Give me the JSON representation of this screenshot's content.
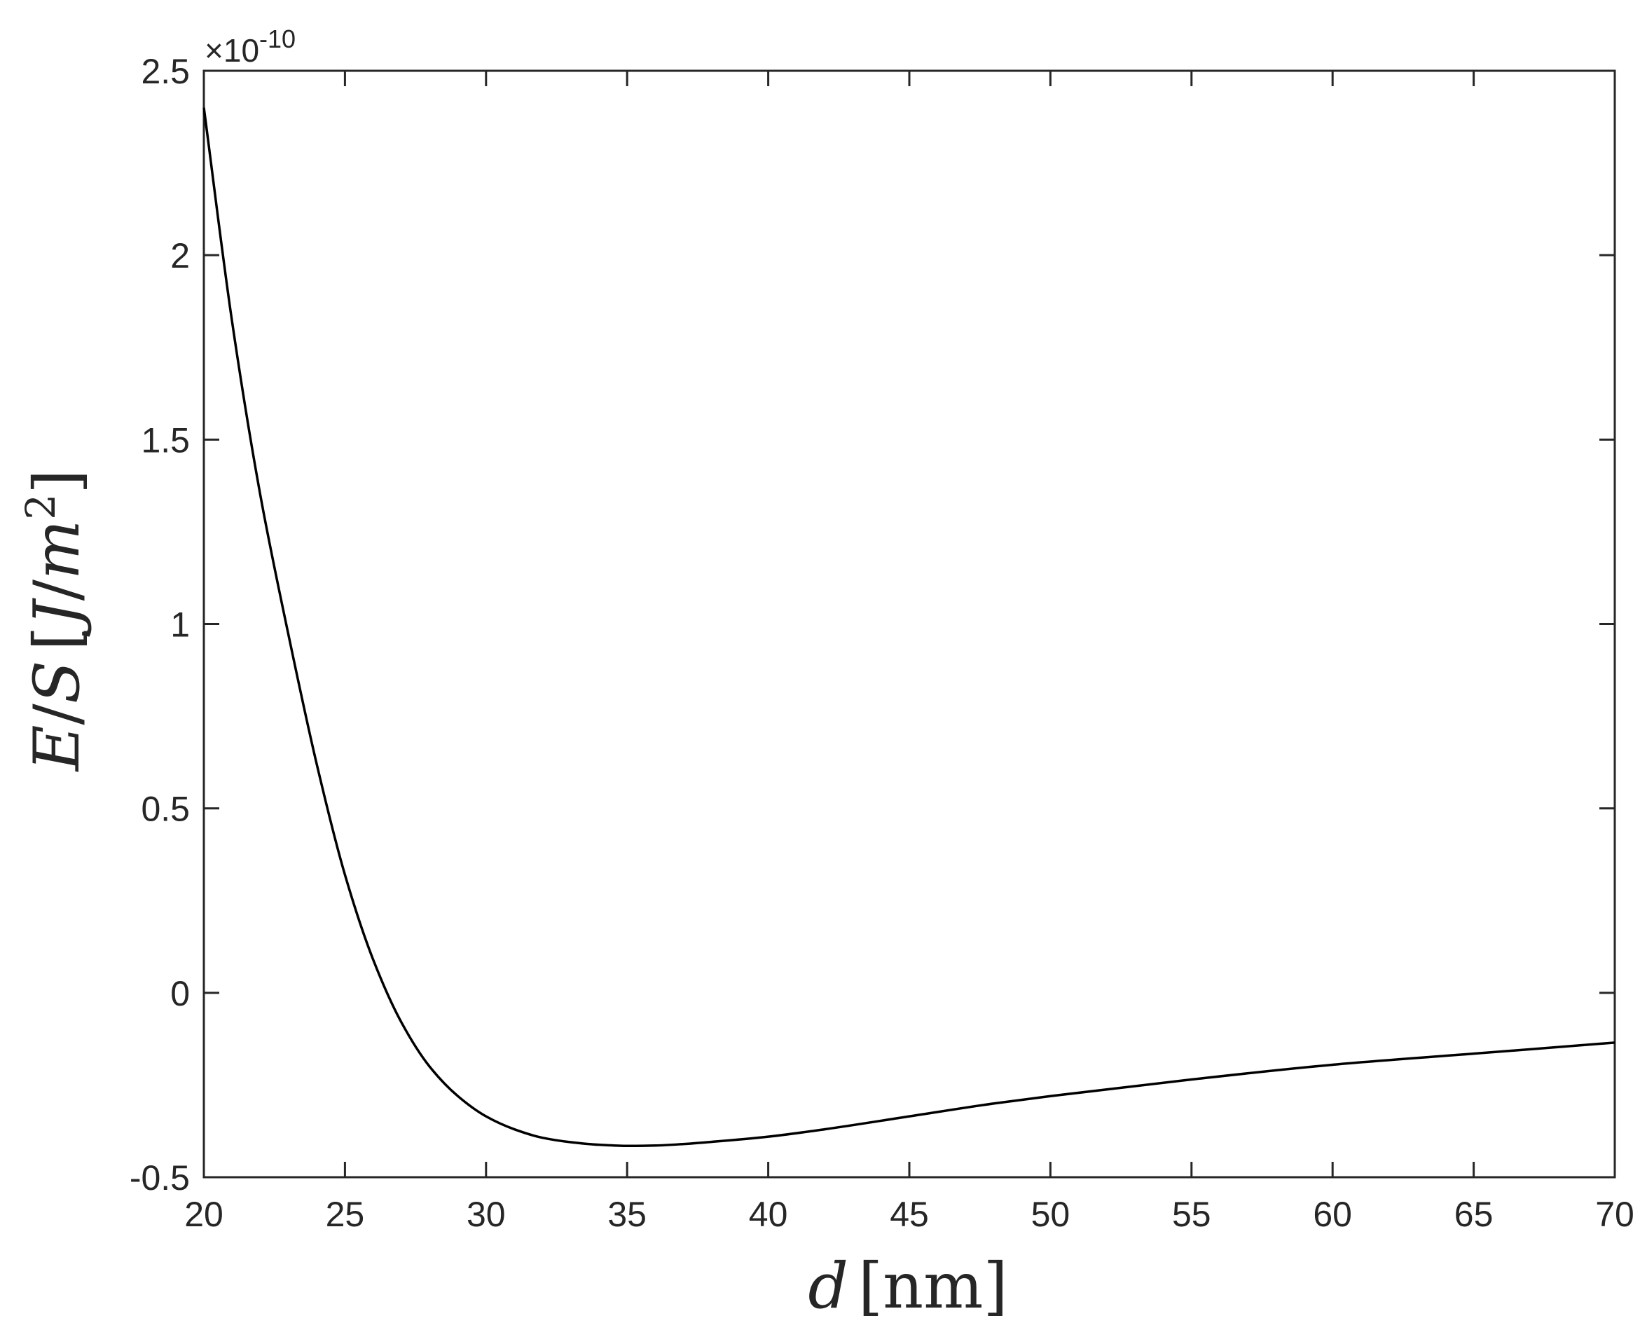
{
  "chart_data": {
    "type": "line",
    "xlabel": {
      "var": "d",
      "unit": "nm"
    },
    "ylabel": {
      "num": "E",
      "den": "S",
      "unit_num": "J",
      "unit_den": "m",
      "unit_pow": "2"
    },
    "y_multiplier": {
      "prefix": "×10",
      "exponent": "-10"
    },
    "xlim": [
      20,
      70
    ],
    "ylim": [
      -0.5,
      2.5
    ],
    "xticks": [
      20,
      25,
      30,
      35,
      40,
      45,
      50,
      55,
      60,
      65,
      70
    ],
    "yticks": [
      -0.5,
      0,
      0.5,
      1,
      1.5,
      2,
      2.5
    ],
    "xtick_labels": [
      "20",
      "25",
      "30",
      "35",
      "40",
      "45",
      "50",
      "55",
      "60",
      "65",
      "70"
    ],
    "ytick_labels": [
      "-0.5",
      "0",
      "0.5",
      "1",
      "1.5",
      "2",
      "2.5"
    ],
    "grid": false,
    "line_color": "#000000",
    "series": [
      {
        "x": [
          20,
          21,
          22,
          23,
          24,
          25,
          26,
          27,
          28,
          29,
          30,
          31,
          32,
          33,
          34,
          35,
          36,
          37,
          38,
          40,
          42,
          45,
          48,
          50,
          55,
          60,
          65,
          70
        ],
        "values": [
          2.4,
          1.82,
          1.35,
          0.97,
          0.62,
          0.32,
          0.09,
          -0.08,
          -0.2,
          -0.28,
          -0.335,
          -0.37,
          -0.393,
          -0.405,
          -0.412,
          -0.415,
          -0.414,
          -0.41,
          -0.404,
          -0.39,
          -0.37,
          -0.335,
          -0.3,
          -0.28,
          -0.235,
          -0.195,
          -0.165,
          -0.135
        ]
      }
    ]
  }
}
